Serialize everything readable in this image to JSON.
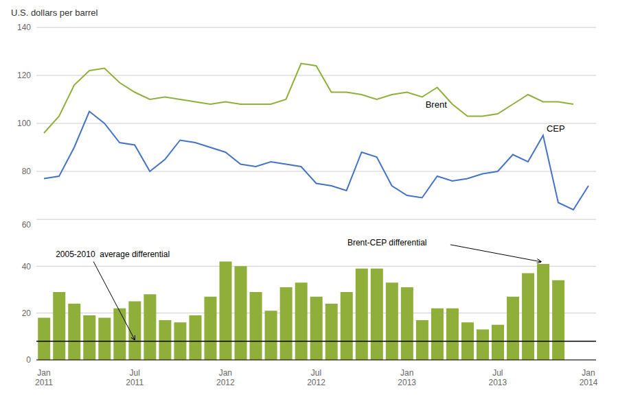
{
  "chart_data": [
    {
      "type": "line",
      "ylabel": "U.S. dollars per barrel",
      "categories": [
        "Jan\n2011",
        null,
        null,
        null,
        null,
        null,
        "Jul\n2011",
        null,
        null,
        null,
        null,
        null,
        "Jan\n2012",
        null,
        null,
        null,
        null,
        null,
        "Jul\n2012",
        null,
        null,
        null,
        null,
        null,
        "Jan\n2013",
        null,
        null,
        null,
        null,
        null,
        "Jul\n2013",
        null,
        null,
        null,
        null,
        null,
        "Jan\n2014"
      ],
      "series": [
        {
          "name": "Brent",
          "color": "#8faf3a",
          "values": [
            96,
            103,
            116,
            122,
            123,
            117,
            113,
            110,
            111,
            110,
            109,
            108,
            109,
            108,
            108,
            108,
            110,
            125,
            124,
            113,
            113,
            112,
            110,
            112,
            113,
            111,
            115,
            108,
            103,
            103,
            104,
            108,
            112,
            109,
            109,
            108,
            null
          ]
        },
        {
          "name": "CEP",
          "color": "#4472c4",
          "values": [
            77,
            78,
            90,
            105,
            100,
            92,
            91,
            80,
            85,
            93,
            92,
            90,
            88,
            83,
            82,
            84,
            83,
            82,
            75,
            74,
            72,
            88,
            86,
            74,
            70,
            69,
            78,
            76,
            77,
            79,
            80,
            87,
            84,
            95,
            67,
            64,
            74
          ]
        }
      ],
      "ylim": [
        60,
        140
      ],
      "yticks": [
        60,
        80,
        100,
        120,
        140
      ],
      "grid": true,
      "tick_labels": "y"
    },
    {
      "type": "bar",
      "categories": [
        "Jan\n2011",
        null,
        null,
        null,
        null,
        null,
        "Jul\n2011",
        null,
        null,
        null,
        null,
        null,
        "Jan\n2012",
        null,
        null,
        null,
        null,
        null,
        "Jul\n2012",
        null,
        null,
        null,
        null,
        null,
        "Jan\n2013",
        null,
        null,
        null,
        null,
        null,
        "Jul\n2013",
        null,
        null,
        null,
        null,
        null,
        "Jan\n2014"
      ],
      "series": [
        {
          "name": "Brent-CEP differential",
          "color": "#8faf3a",
          "values": [
            18,
            29,
            24,
            19,
            18,
            22,
            25,
            28,
            17,
            16,
            19,
            27,
            42,
            40,
            29,
            21,
            31,
            33,
            27,
            24,
            29,
            39,
            39,
            33,
            31,
            17,
            22,
            22,
            16,
            13,
            15,
            27,
            37,
            41,
            34,
            null,
            null
          ]
        }
      ],
      "average": {
        "value": 8,
        "label": "2005-2010  average differential"
      },
      "ylim": [
        0,
        60
      ],
      "yticks": [
        0,
        20,
        40,
        60
      ],
      "grid": true
    }
  ]
}
